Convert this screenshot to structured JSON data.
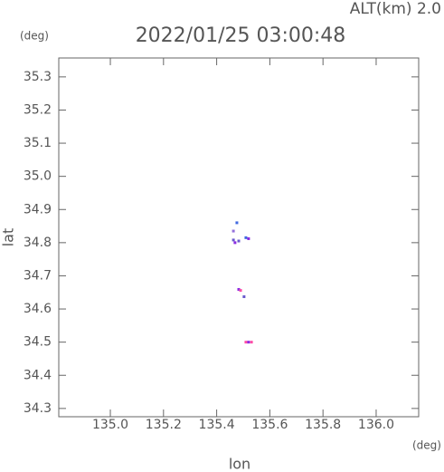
{
  "chart_data": {
    "type": "scatter",
    "annotation": "ALT(km) 2.0",
    "title": "2022/01/25 03:00:48",
    "y_unit": "(deg)",
    "x_unit": "(deg)",
    "ylabel": "lat",
    "xlabel": "lon",
    "xlim": [
      134.806,
      136.16
    ],
    "ylim": [
      34.275,
      35.357
    ],
    "xticks": [
      {
        "value": 135,
        "label": "135.0"
      },
      135.2,
      135.4,
      135.6,
      135.8,
      {
        "value": 136,
        "label": "136.0"
      }
    ],
    "yticks": [
      34.3,
      34.4,
      34.5,
      34.6,
      34.7,
      34.8,
      34.9,
      {
        "value": 35,
        "label": "35.0"
      },
      35.1,
      35.2,
      35.3
    ],
    "x": [
      135.463,
      135.469,
      135.476,
      135.463,
      135.51,
      135.52,
      135.483,
      135.483,
      135.49,
      135.503,
      135.51,
      135.52,
      135.531
    ],
    "values": [
      34.808,
      34.8,
      34.86,
      34.835,
      34.815,
      34.812,
      34.805,
      34.659,
      34.656,
      34.637,
      34.5,
      34.5,
      34.5
    ],
    "colors": [
      "#6a5acd",
      "#8a2be2",
      "#4169e1",
      "#9370db",
      "#4169e1",
      "#8a2be2",
      "#6a5acd",
      "#8a2be2",
      "#ff4da6",
      "#6a5acd",
      "#ff4da6",
      "#8a2be2",
      "#ff4da6"
    ]
  }
}
